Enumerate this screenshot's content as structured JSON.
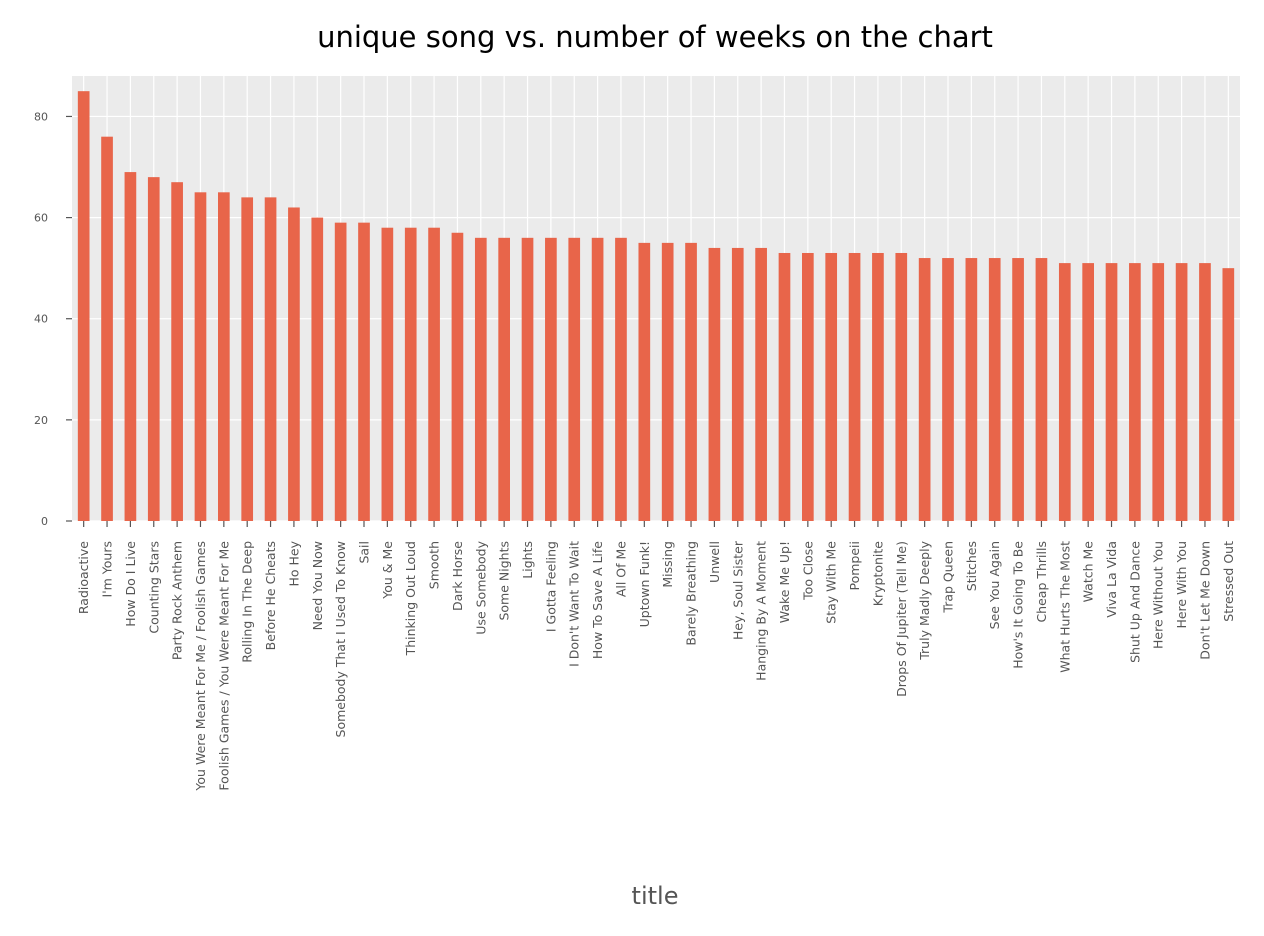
{
  "chart_data": {
    "type": "bar",
    "title": "unique song vs. number of weeks on the chart",
    "xlabel": "title",
    "ylabel": "",
    "ylim": [
      0,
      88
    ],
    "yticks": [
      0,
      20,
      40,
      60,
      80
    ],
    "grid": true,
    "legend": "none",
    "bar_color": "#E8654A",
    "background_color": "#EBEBEB",
    "categories": [
      "Radioactive",
      "I'm Yours",
      "How Do I Live",
      "Counting Stars",
      "Party Rock Anthem",
      "You Were Meant For Me / Foolish Games",
      "Foolish Games / You Were Meant For Me",
      "Rolling In The Deep",
      "Before He Cheats",
      "Ho Hey",
      "Need You Now",
      "Somebody That I Used To Know",
      "Sail",
      "You & Me",
      "Thinking Out Loud",
      "Smooth",
      "Dark Horse",
      "Use Somebody",
      "Some Nights",
      "Lights",
      "I Gotta Feeling",
      "I Don't Want To Wait",
      "How To Save A Life",
      "All Of Me",
      "Uptown Funk!",
      "Missing",
      "Barely Breathing",
      "Unwell",
      "Hey, Soul Sister",
      "Hanging By A Moment",
      "Wake Me Up!",
      "Too Close",
      "Stay With Me",
      "Pompeii",
      "Kryptonite",
      "Drops Of Jupiter (Tell Me)",
      "Truly Madly Deeply",
      "Trap Queen",
      "Stitches",
      "See You Again",
      "How's It Going To Be",
      "Cheap Thrills",
      "What Hurts The Most",
      "Watch Me",
      "Viva La Vida",
      "Shut Up And Dance",
      "Here Without You",
      "Here With You",
      "Don't Let Me Down",
      "Stressed Out"
    ],
    "values": [
      85,
      76,
      69,
      68,
      67,
      65,
      65,
      64,
      64,
      62,
      60,
      59,
      59,
      58,
      58,
      58,
      57,
      56,
      56,
      56,
      56,
      56,
      56,
      56,
      55,
      55,
      55,
      54,
      54,
      54,
      53,
      53,
      53,
      53,
      53,
      53,
      52,
      52,
      52,
      52,
      52,
      52,
      51,
      51,
      51,
      51,
      51,
      51,
      51,
      50
    ]
  }
}
